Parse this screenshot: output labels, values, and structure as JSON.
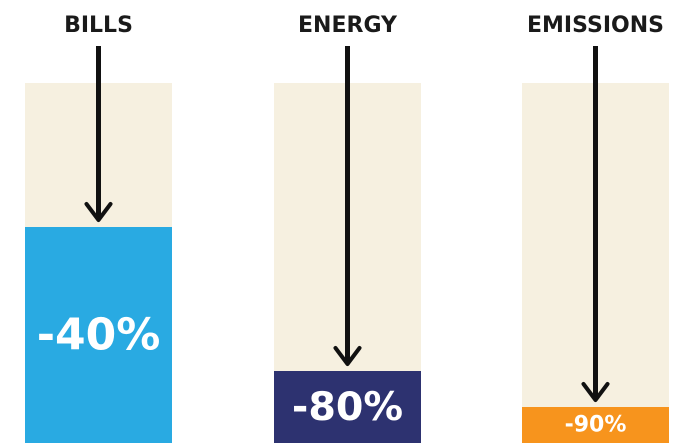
{
  "chart_data": {
    "type": "bar",
    "categories": [
      "BILLS",
      "ENERGY",
      "EMISSIONS"
    ],
    "values": [
      -40,
      -80,
      -90
    ],
    "value_labels": [
      "-40%",
      "-80%",
      "-90%"
    ],
    "ylim": [
      -100,
      0
    ],
    "colors": {
      "track": "#f6f0e0",
      "bars": [
        "#29aae2",
        "#2d3270",
        "#f7941d"
      ],
      "arrow": "#111111",
      "text": "#1a1a1a",
      "value_text": "#ffffff"
    },
    "grid": false,
    "legend": "none"
  }
}
